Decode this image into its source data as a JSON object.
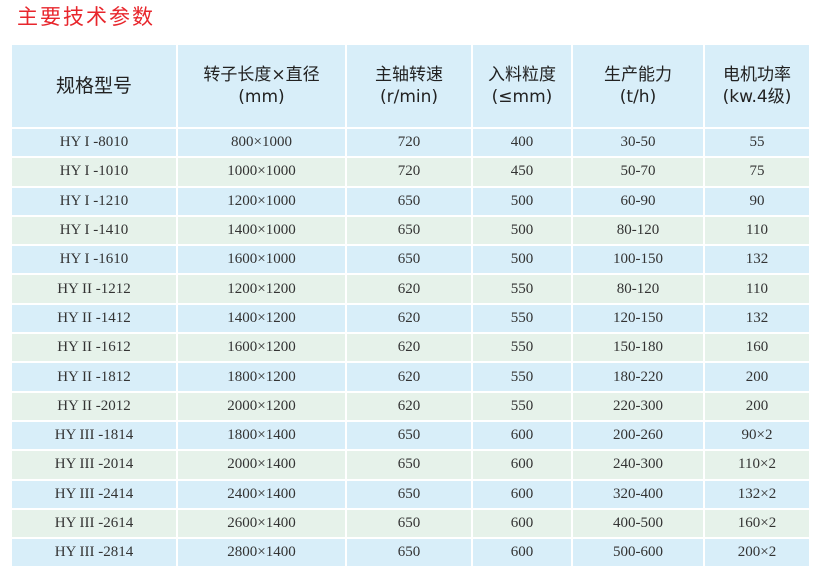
{
  "title": "主要技术参数",
  "headers": [
    {
      "l1": "规格型号",
      "l2": ""
    },
    {
      "l1": "转子长度×直径",
      "l2": "(mm)"
    },
    {
      "l1": "主轴转速",
      "l2": "(r/min)"
    },
    {
      "l1": "入料粒度",
      "l2": "(≤mm)"
    },
    {
      "l1": "生产能力",
      "l2": "(t/h)"
    },
    {
      "l1": "电机功率",
      "l2": "(kw.4级)"
    }
  ],
  "rows": [
    [
      "HY I -8010",
      "800×1000",
      "720",
      "400",
      "30-50",
      "55"
    ],
    [
      "HY I -1010",
      "1000×1000",
      "720",
      "450",
      "50-70",
      "75"
    ],
    [
      "HY I -1210",
      "1200×1000",
      "650",
      "500",
      "60-90",
      "90"
    ],
    [
      "HY I -1410",
      "1400×1000",
      "650",
      "500",
      "80-120",
      "110"
    ],
    [
      "HY I -1610",
      "1600×1000",
      "650",
      "500",
      "100-150",
      "132"
    ],
    [
      "HY II -1212",
      "1200×1200",
      "620",
      "550",
      "80-120",
      "110"
    ],
    [
      "HY II -1412",
      "1400×1200",
      "620",
      "550",
      "120-150",
      "132"
    ],
    [
      "HY II -1612",
      "1600×1200",
      "620",
      "550",
      "150-180",
      "160"
    ],
    [
      "HY II -1812",
      "1800×1200",
      "620",
      "550",
      "180-220",
      "200"
    ],
    [
      "HY II -2012",
      "2000×1200",
      "620",
      "550",
      "220-300",
      "200"
    ],
    [
      "HY III -1814",
      "1800×1400",
      "650",
      "600",
      "200-260",
      "90×2"
    ],
    [
      "HY III -2014",
      "2000×1400",
      "650",
      "600",
      "240-300",
      "110×2"
    ],
    [
      "HY III -2414",
      "2400×1400",
      "650",
      "600",
      "320-400",
      "132×2"
    ],
    [
      "HY III -2614",
      "2600×1400",
      "650",
      "600",
      "400-500",
      "160×2"
    ],
    [
      "HY III -2814",
      "2800×1400",
      "650",
      "600",
      "500-600",
      "200×2"
    ]
  ],
  "colors": {
    "title": "#e8262c",
    "row_blue": "#d8eef9",
    "row_green": "#e6f2ea"
  }
}
